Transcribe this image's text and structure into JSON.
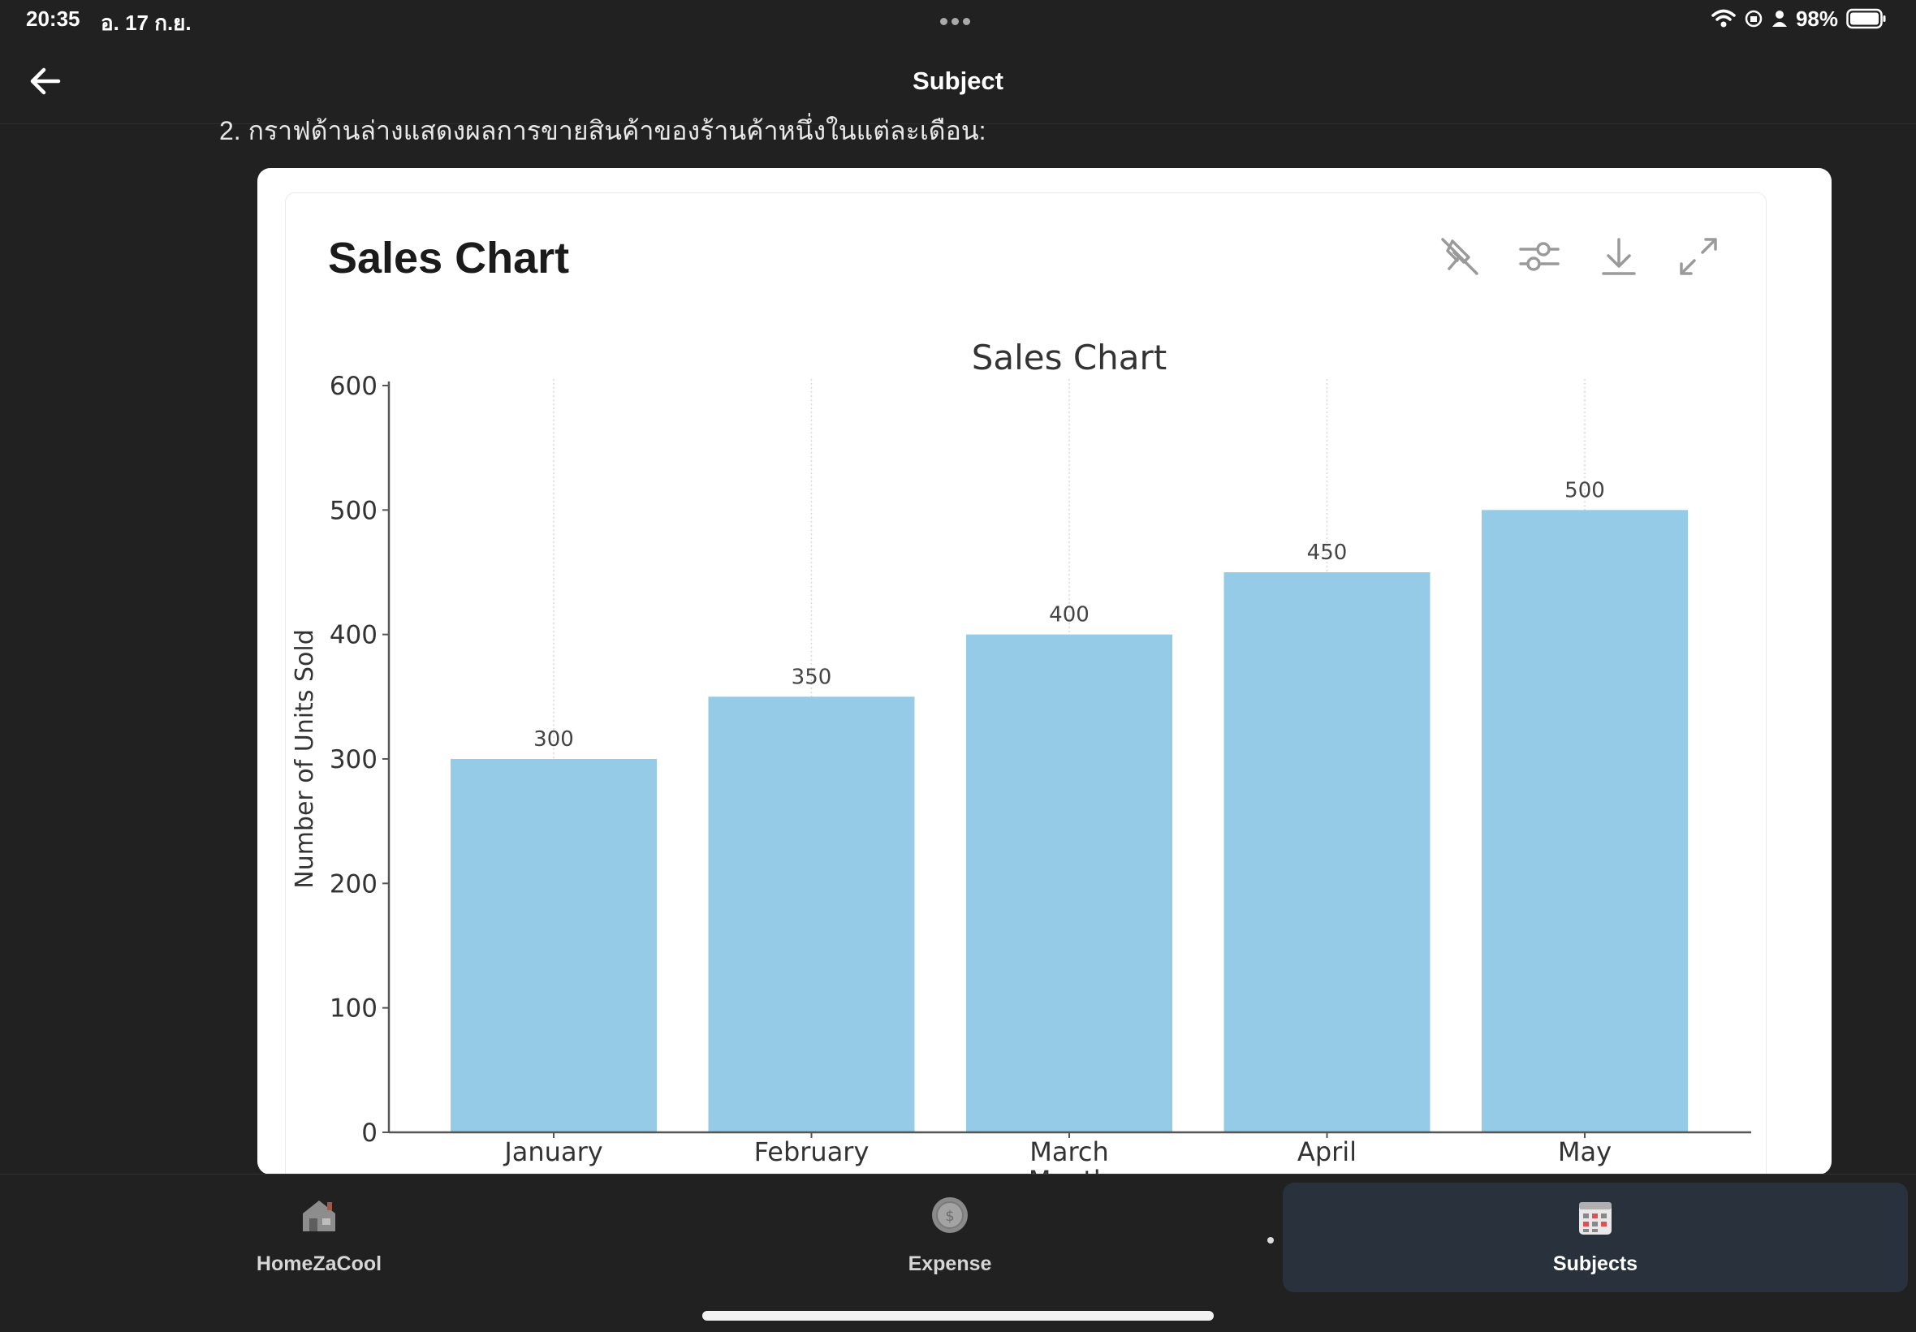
{
  "status_bar": {
    "time": "20:35",
    "date": "อ. 17 ก.ย.",
    "battery": "98%"
  },
  "header": {
    "title": "Subject",
    "back_icon": "arrow-left-icon"
  },
  "question": {
    "text": "2.  กราฟด้านล่างแสดงผลการขายสินค้าของร้านค้าหนึ่งในแต่ละเดือน:"
  },
  "card": {
    "title": "Sales Chart",
    "tools": [
      "pin-off-icon",
      "sliders-icon",
      "download-icon",
      "expand-icon"
    ]
  },
  "chart_data": {
    "type": "bar",
    "title": "Sales Chart",
    "xlabel": "Month",
    "ylabel": "Number of Units Sold",
    "categories": [
      "January",
      "February",
      "March",
      "April",
      "May"
    ],
    "values": [
      300,
      350,
      400,
      450,
      500
    ],
    "ylim": [
      0,
      600
    ],
    "yticks": [
      0,
      100,
      200,
      300,
      400,
      500,
      600
    ],
    "bar_color": "#95cbe7",
    "grid": "vertical-dashed"
  },
  "bottom_nav": {
    "items": [
      {
        "label": "HomeZaCool",
        "icon": "house-icon"
      },
      {
        "label": "Expense",
        "icon": "coin-icon"
      },
      {
        "label": "Subjects",
        "icon": "grid-calendar-icon"
      }
    ],
    "active": "Subjects"
  },
  "colors": {
    "background": "#212121",
    "card": "#ffffff",
    "active_tab": "#29323c"
  }
}
